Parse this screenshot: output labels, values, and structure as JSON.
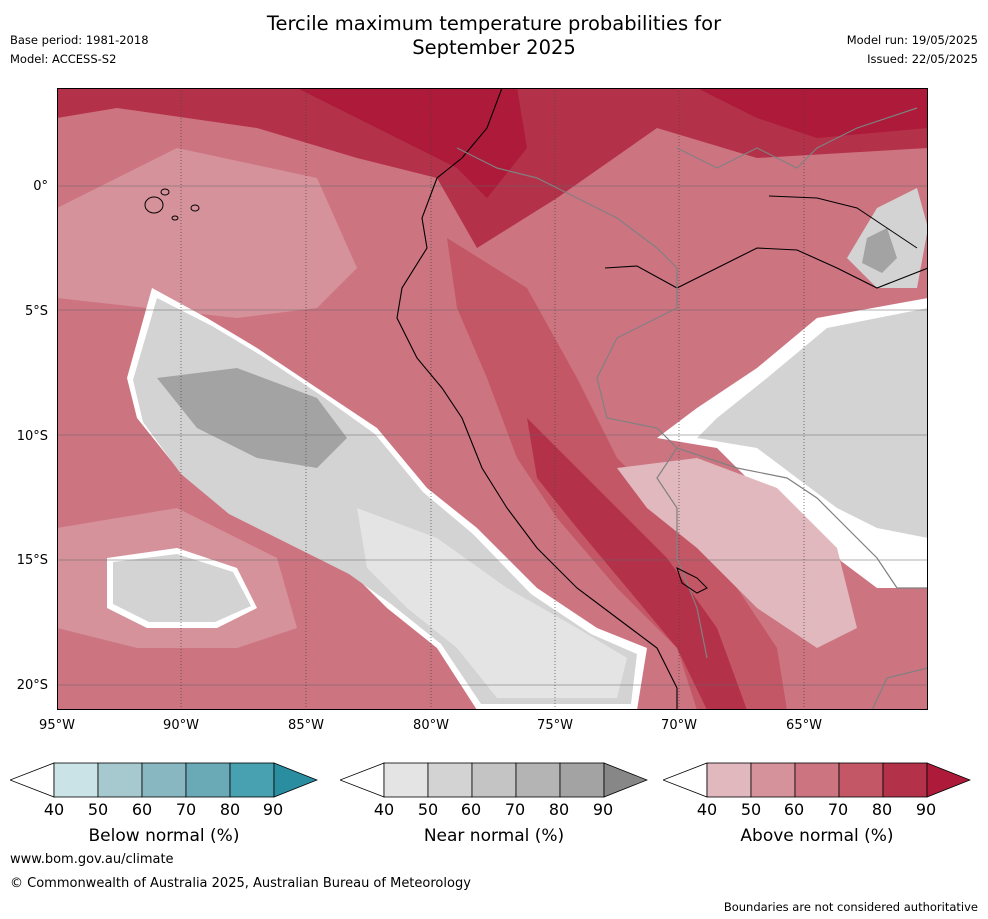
{
  "title": "Tercile maximum temperature probabilities for\nSeptember 2025",
  "title_line1": "Tercile maximum temperature probabilities for",
  "title_line2": "September 2025",
  "meta": {
    "base_period": "Base period: 1981-2018",
    "model": "Model: ACCESS-S2",
    "model_run": "Model run: 19/05/2025",
    "issued": "Issued: 22/05/2025"
  },
  "map": {
    "lat_labels": [
      "0°",
      "5°S",
      "10°S",
      "15°S",
      "20°S"
    ],
    "lon_labels": [
      "95°W",
      "90°W",
      "85°W",
      "80°W",
      "75°W",
      "70°W",
      "65°W"
    ],
    "land_border_color": "#808080",
    "coast_color": "#000000"
  },
  "colorbars": [
    {
      "name": "Below normal (%)",
      "ticks": [
        "40",
        "50",
        "60",
        "70",
        "80",
        "90"
      ],
      "colors": [
        "#ffffff",
        "#c9e3e7",
        "#a6c9cf",
        "#88b6c1",
        "#6aaab7",
        "#47a1b1",
        "#2a8da0"
      ]
    },
    {
      "name": "Near normal (%)",
      "ticks": [
        "40",
        "50",
        "60",
        "70",
        "80",
        "90"
      ],
      "colors": [
        "#ffffff",
        "#e4e4e4",
        "#d3d3d3",
        "#c4c4c4",
        "#b4b4b4",
        "#a3a3a3",
        "#878787"
      ]
    },
    {
      "name": "Above normal (%)",
      "ticks": [
        "40",
        "50",
        "60",
        "70",
        "80",
        "90"
      ],
      "colors": [
        "#ffffff",
        "#e0b8bd",
        "#d6929b",
        "#cd7481",
        "#c45766",
        "#b4314a",
        "#ad1a3a"
      ]
    }
  ],
  "footer": {
    "url": "www.bom.gov.au/climate",
    "copyright": "© Commonwealth of Australia 2025, Australian Bureau of Meteorology",
    "disclaimer": "Boundaries are not considered authoritative"
  }
}
